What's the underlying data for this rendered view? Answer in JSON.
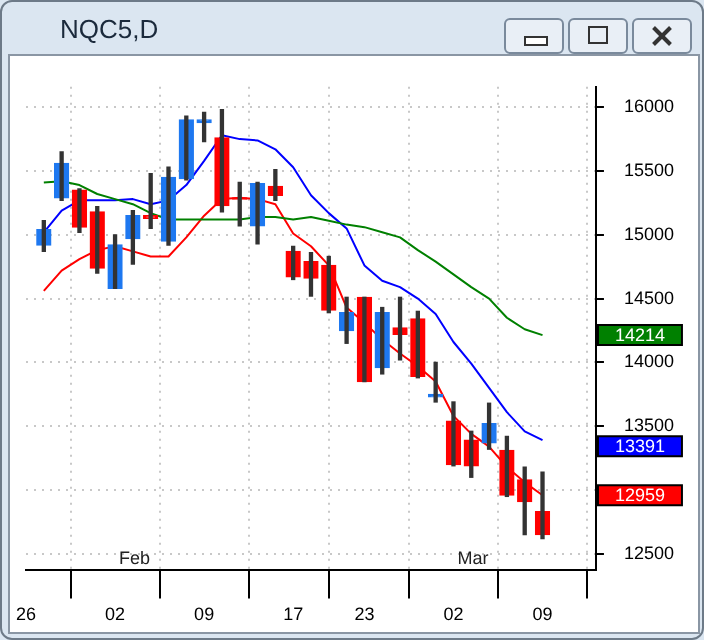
{
  "chart_data": {
    "type": "candlestick",
    "title": "NQC5,D",
    "categories": [
      "26",
      null,
      null,
      null,
      null,
      "02",
      null,
      null,
      null,
      null,
      "09",
      null,
      null,
      null,
      null,
      "17",
      null,
      null,
      null,
      "23",
      null,
      null,
      null,
      null,
      "02",
      null,
      null,
      null,
      null,
      "09"
    ],
    "ohlc": [
      null,
      [
        14920,
        15110,
        14870,
        15040
      ],
      [
        15290,
        15650,
        15270,
        15560
      ],
      [
        15350,
        15360,
        15020,
        15060
      ],
      [
        15180,
        15220,
        14700,
        14740
      ],
      [
        14580,
        15000,
        14580,
        14920
      ],
      [
        14970,
        15190,
        14770,
        15150
      ],
      [
        15150,
        15480,
        15050,
        15130
      ],
      [
        14950,
        15530,
        14920,
        15450
      ],
      [
        15440,
        15930,
        15430,
        15900
      ],
      [
        15880,
        15960,
        15730,
        15900
      ],
      [
        15760,
        15980,
        15180,
        15230
      ],
      [
        15290,
        15410,
        15070,
        15280
      ],
      [
        15070,
        15410,
        14930,
        15400
      ],
      [
        15380,
        15510,
        15270,
        15310
      ],
      [
        14870,
        14910,
        14650,
        14670
      ],
      [
        14790,
        14860,
        14520,
        14660
      ],
      [
        14760,
        14830,
        14390,
        14410
      ],
      [
        14250,
        14510,
        14150,
        14390
      ],
      [
        14510,
        14510,
        13850,
        13850
      ],
      [
        13960,
        14430,
        13910,
        14390
      ],
      [
        14270,
        14510,
        14020,
        14220
      ],
      [
        14340,
        14400,
        13880,
        13890
      ],
      [
        13730,
        14000,
        13690,
        13750
      ],
      [
        13540,
        13690,
        13190,
        13200
      ],
      [
        13390,
        13460,
        13100,
        13190
      ],
      [
        13370,
        13680,
        13320,
        13520
      ],
      [
        13310,
        13420,
        12950,
        12960
      ],
      [
        13080,
        13180,
        12650,
        12910
      ],
      [
        12830,
        13140,
        12620,
        12650
      ]
    ],
    "colors": [
      null,
      "#1e78f0",
      "#1e78f0",
      "#ff0000",
      "#ff0000",
      "#1e78f0",
      "#1e78f0",
      "#ff0000",
      "#1e78f0",
      "#1e78f0",
      "#1e78f0",
      "#ff0000",
      "#ff0000",
      "#1e78f0",
      "#ff0000",
      "#ff0000",
      "#ff0000",
      "#ff0000",
      "#1e78f0",
      "#ff0000",
      "#1e78f0",
      "#ff0000",
      "#ff0000",
      "#1e78f0",
      "#ff0000",
      "#ff0000",
      "#1e78f0",
      "#ff0000",
      "#ff0000",
      "#ff0000"
    ],
    "series": [
      {
        "type": "line",
        "color": "#008000",
        "values": [
          null,
          15410,
          15420,
          15390,
          15320,
          15280,
          15240,
          15170,
          15120,
          15120,
          15120,
          15120,
          15120,
          15140,
          15140,
          15120,
          15140,
          15110,
          15080,
          15060,
          15020,
          14980,
          14880,
          14790,
          14690,
          14590,
          14500,
          14350,
          14260,
          14214
        ]
      },
      {
        "type": "line",
        "color": "#0000ff",
        "values": [
          null,
          15020,
          15190,
          15270,
          15270,
          15270,
          15280,
          15240,
          15270,
          15390,
          15580,
          15780,
          15750,
          15740,
          15670,
          15530,
          15310,
          15170,
          15050,
          14760,
          14640,
          14590,
          14500,
          14380,
          14160,
          13990,
          13800,
          13610,
          13460,
          13391
        ]
      },
      {
        "type": "line",
        "color": "#ff0000",
        "values": [
          null,
          14560,
          14720,
          14810,
          14880,
          14910,
          14870,
          14830,
          14830,
          14980,
          15150,
          15280,
          15290,
          15280,
          15240,
          15010,
          14910,
          14760,
          14430,
          14310,
          14180,
          14070,
          13970,
          13850,
          13580,
          13440,
          13340,
          13180,
          13060,
          12959
        ]
      }
    ],
    "annotations": [
      "14214",
      "13391",
      "12959",
      "Feb",
      "Mar"
    ],
    "ylim": [
      12370,
      16160
    ],
    "yticks": [
      12500,
      {
        "value": 13000,
        "label": null
      },
      13500,
      14000,
      14500,
      15000,
      15500,
      16000
    ],
    "grid": true,
    "marker": "none",
    "line_style": "solid",
    "legend": false
  }
}
